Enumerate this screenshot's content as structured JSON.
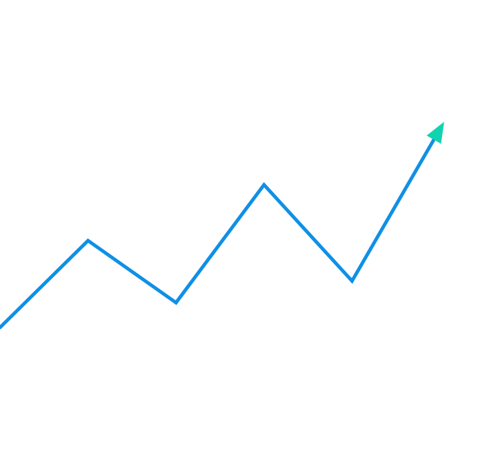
{
  "chart_data": {
    "type": "line",
    "title": "",
    "xlabel": "",
    "ylabel": "",
    "grid": true,
    "arrow_at_end": true,
    "x": [
      0,
      1,
      2,
      3,
      4,
      5
    ],
    "series": [
      {
        "values": [
          1.0,
          2.4,
          1.4,
          3.3,
          1.75,
          4.2
        ]
      }
    ],
    "xlim": [
      -1.2,
      5.9
    ],
    "ylim": [
      -1.0,
      5.6
    ]
  },
  "colors": {
    "line": "#0f90e6",
    "arrow": "#10d3b0",
    "grid": "#c9ecf7",
    "background": "#ffffff"
  }
}
